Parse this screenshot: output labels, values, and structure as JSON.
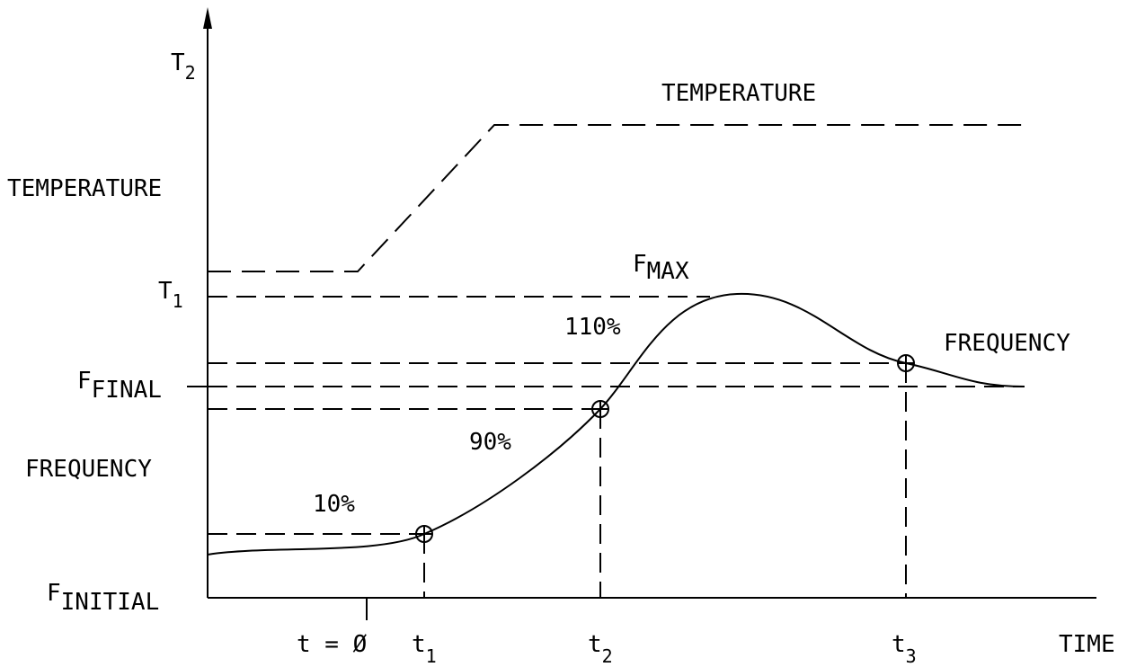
{
  "axes": {
    "y_left_top": {
      "main": "T",
      "sub": "2"
    },
    "y_left_t1": {
      "main": "T",
      "sub": "1"
    },
    "temperature_axis": "TEMPERATURE",
    "frequency_axis": "FREQUENCY",
    "f_final": {
      "main": "F",
      "sub": "FINAL"
    },
    "f_initial": {
      "main": "F",
      "sub": "INITIAL"
    },
    "x_axis": "TIME"
  },
  "ticks": {
    "t0": "t = Ø",
    "t1": {
      "main": "t",
      "sub": "1"
    },
    "t2": {
      "main": "t",
      "sub": "2"
    },
    "t3": {
      "main": "t",
      "sub": "3"
    }
  },
  "annotations": {
    "temperature_curve": "TEMPERATURE",
    "frequency_curve": "FREQUENCY",
    "f_max": {
      "main": "F",
      "sub": "MAX"
    },
    "pct_10": "10%",
    "pct_90": "90%",
    "pct_110": "110%"
  },
  "colors": {
    "line": "#000000",
    "background": "#ffffff"
  }
}
